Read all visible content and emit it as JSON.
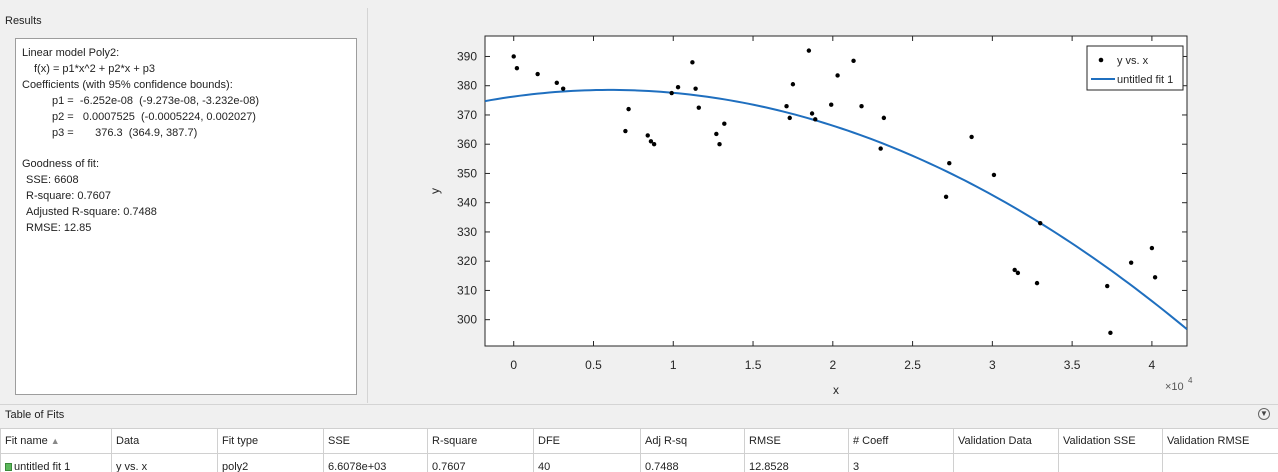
{
  "results": {
    "header": "Results",
    "model_line": "Linear model Poly2:",
    "formula": "f(x) = p1*x^2 + p2*x + p3",
    "coef_header": "Coefficients (with 95% confidence bounds):",
    "coefficients": [
      "p1 =  -6.252e-08  (-9.273e-08, -3.232e-08)",
      "p2 =   0.0007525  (-0.0005224, 0.002027)",
      "p3 =       376.3  (364.9, 387.7)"
    ],
    "gof_header": "Goodness of fit:",
    "gof": [
      "SSE: 6608",
      "R-square: 0.7607",
      "Adjusted R-square: 0.7488",
      "RMSE: 12.85"
    ]
  },
  "plot": {
    "xlabel": "x",
    "ylabel": "y",
    "x_exponent_base": "×10",
    "x_exponent_power": "4",
    "legend": {
      "points_label": "y vs. x",
      "fit_label": "untitled fit 1"
    }
  },
  "chart_data": {
    "type": "scatter",
    "xlabel": "x",
    "ylabel": "y",
    "xlim": [
      -0.18,
      4.22
    ],
    "ylim": [
      291,
      397
    ],
    "x_scale_note": "×10^4",
    "xticks": [
      0,
      0.5,
      1,
      1.5,
      2,
      2.5,
      3,
      3.5,
      4
    ],
    "yticks": [
      300,
      310,
      320,
      330,
      340,
      350,
      360,
      370,
      380,
      390
    ],
    "legend_position": "top-right",
    "grid": false,
    "series": [
      {
        "name": "y vs. x",
        "kind": "points",
        "color": "#000000",
        "points": [
          [
            0.0,
            390
          ],
          [
            0.02,
            386
          ],
          [
            0.15,
            384
          ],
          [
            0.27,
            381
          ],
          [
            0.31,
            379
          ],
          [
            0.7,
            364.5
          ],
          [
            0.72,
            372
          ],
          [
            0.84,
            363
          ],
          [
            0.86,
            361
          ],
          [
            0.88,
            360
          ],
          [
            0.99,
            377.5
          ],
          [
            1.03,
            379.5
          ],
          [
            1.12,
            388
          ],
          [
            1.14,
            379
          ],
          [
            1.16,
            372.5
          ],
          [
            1.27,
            363.5
          ],
          [
            1.29,
            360
          ],
          [
            1.32,
            367
          ],
          [
            1.71,
            373
          ],
          [
            1.73,
            369
          ],
          [
            1.75,
            380.5
          ],
          [
            1.85,
            392
          ],
          [
            1.87,
            370.5
          ],
          [
            1.89,
            368.5
          ],
          [
            1.99,
            373.5
          ],
          [
            2.03,
            383.5
          ],
          [
            2.13,
            388.5
          ],
          [
            2.18,
            373
          ],
          [
            2.3,
            358.5
          ],
          [
            2.32,
            369
          ],
          [
            2.71,
            342
          ],
          [
            2.73,
            353.5
          ],
          [
            2.87,
            362.5
          ],
          [
            3.01,
            349.5
          ],
          [
            3.14,
            317
          ],
          [
            3.16,
            316
          ],
          [
            3.28,
            312.5
          ],
          [
            3.3,
            333
          ],
          [
            3.72,
            311.5
          ],
          [
            3.74,
            295.5
          ],
          [
            3.87,
            319.5
          ],
          [
            4.0,
            324.5
          ],
          [
            4.02,
            314.5
          ]
        ]
      },
      {
        "name": "untitled fit 1",
        "kind": "line",
        "color": "#1f6fbf",
        "equation": "y = -6.252e-08*x^2 + 0.0007525*x + 376.3 (x in raw units)",
        "p1": -6.252e-08,
        "p2": 0.0007525,
        "p3": 376.3
      }
    ]
  },
  "table": {
    "header": "Table of Fits",
    "collapse_icon": "chevron-down-circle-icon",
    "columns": [
      "Fit name",
      "Data",
      "Fit type",
      "SSE",
      "R-square",
      "DFE",
      "Adj R-sq",
      "RMSE",
      "# Coeff",
      "Validation Data",
      "Validation SSE",
      "Validation RMSE"
    ],
    "rows": [
      [
        "untitled fit 1",
        "y vs. x",
        "poly2",
        "6.6078e+03",
        "0.7607",
        "40",
        "0.7488",
        "12.8528",
        "3",
        "",
        "",
        ""
      ]
    ]
  }
}
